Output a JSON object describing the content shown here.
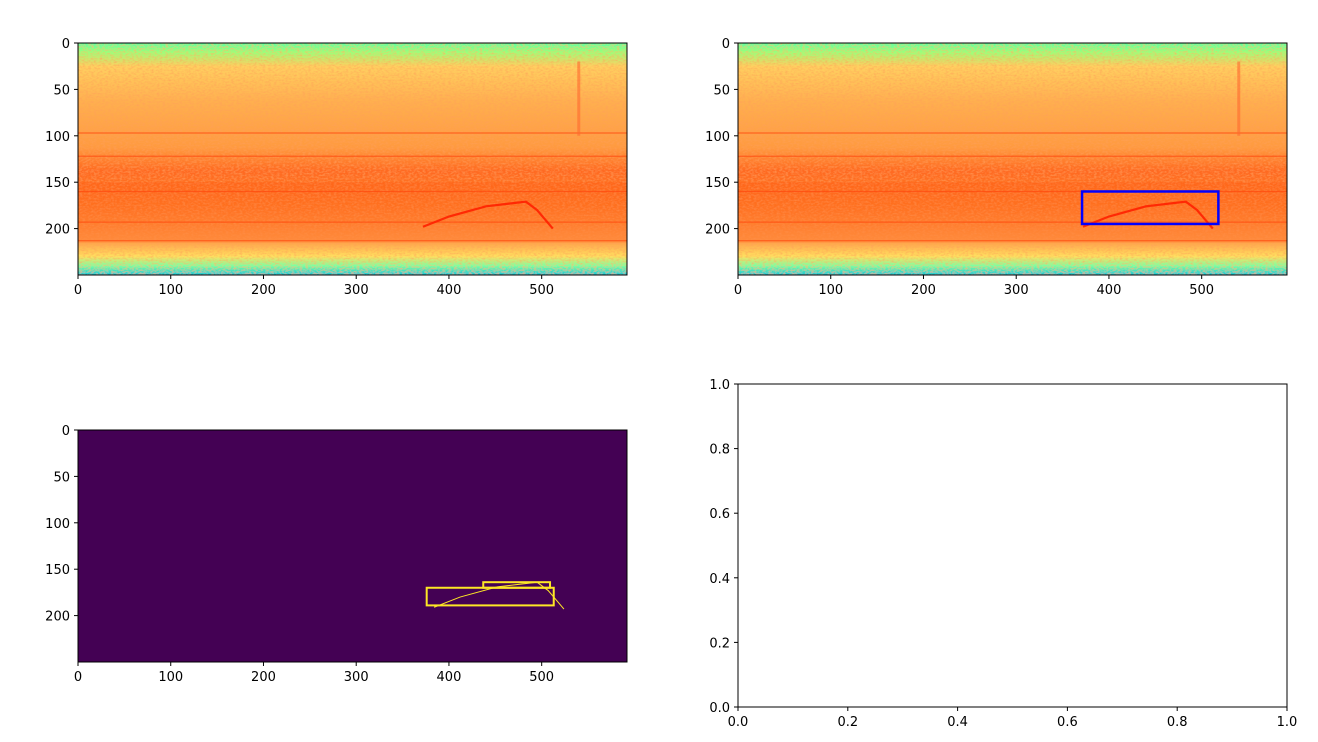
{
  "chart_data": [
    {
      "panel": "top-left",
      "type": "heatmap",
      "colormap": "jet spectrogram",
      "title": "",
      "xlabel": "",
      "ylabel": "",
      "xlim": [
        0,
        592
      ],
      "ylim": [
        250,
        0
      ],
      "x_ticks": [
        0,
        100,
        200,
        300,
        400,
        500
      ],
      "y_ticks": [
        0,
        50,
        100,
        150,
        200
      ],
      "features": {
        "horizontal_lines_y": [
          97,
          122,
          160,
          193,
          213
        ],
        "call_trace": [
          [
            372,
            198
          ],
          [
            400,
            187
          ],
          [
            440,
            176
          ],
          [
            483,
            171
          ],
          [
            495,
            180
          ],
          [
            512,
            200
          ]
        ],
        "vertical_streak_x": 540
      }
    },
    {
      "panel": "top-right",
      "type": "heatmap",
      "colormap": "jet spectrogram",
      "title": "",
      "xlabel": "",
      "ylabel": "",
      "xlim": [
        0,
        592
      ],
      "ylim": [
        250,
        0
      ],
      "x_ticks": [
        0,
        100,
        200,
        300,
        400,
        500
      ],
      "y_ticks": [
        0,
        50,
        100,
        150,
        200
      ],
      "bounding_box": {
        "x0": 371,
        "y0": 160,
        "x1": 518,
        "y1": 195,
        "color": "#0000ff"
      }
    },
    {
      "panel": "bottom-left",
      "type": "heatmap",
      "colormap": "viridis mask",
      "title": "",
      "xlabel": "",
      "ylabel": "",
      "xlim": [
        0,
        592
      ],
      "ylim": [
        250,
        0
      ],
      "x_ticks": [
        0,
        100,
        200,
        300,
        400,
        500
      ],
      "y_ticks": [
        0,
        50,
        100,
        150,
        200
      ],
      "background_color": "#440154",
      "foreground_color": "#fde725",
      "boxes": [
        {
          "x0": 376,
          "y0": 170,
          "x1": 513,
          "y1": 189
        },
        {
          "x0": 437,
          "y0": 164,
          "x1": 509,
          "y1": 170
        }
      ]
    },
    {
      "panel": "bottom-right",
      "type": "line",
      "title": "",
      "xlabel": "",
      "ylabel": "",
      "series": [],
      "xlim": [
        0,
        1
      ],
      "ylim": [
        0,
        1
      ],
      "x_ticks": [
        "0.0",
        "0.2",
        "0.4",
        "0.6",
        "0.8",
        "1.0"
      ],
      "y_ticks": [
        "0.0",
        "0.2",
        "0.4",
        "0.6",
        "0.8",
        "1.0"
      ]
    }
  ]
}
